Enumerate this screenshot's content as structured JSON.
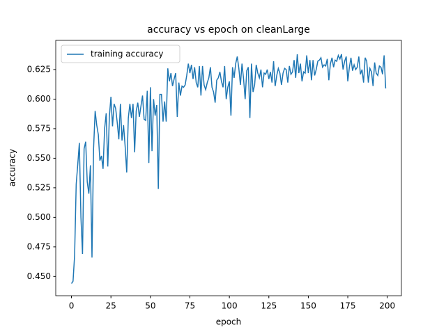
{
  "chart_data": {
    "type": "line",
    "title": "accuracy vs epoch on cleanLarge",
    "x_label": "epoch",
    "y_label": "accuracy",
    "x": [
      0,
      1,
      2,
      3,
      4,
      5,
      6,
      7,
      8,
      9,
      10,
      11,
      12,
      13,
      14,
      15,
      16,
      17,
      18,
      19,
      20,
      21,
      22,
      23,
      24,
      25,
      26,
      27,
      28,
      29,
      30,
      31,
      32,
      33,
      34,
      35,
      36,
      37,
      38,
      39,
      40,
      41,
      42,
      43,
      44,
      45,
      46,
      47,
      48,
      49,
      50,
      51,
      52,
      53,
      54,
      55,
      56,
      57,
      58,
      59,
      60,
      61,
      62,
      63,
      64,
      65,
      66,
      67,
      68,
      69,
      70,
      71,
      72,
      73,
      74,
      75,
      76,
      77,
      78,
      79,
      80,
      81,
      82,
      83,
      84,
      85,
      86,
      87,
      88,
      89,
      90,
      91,
      92,
      93,
      94,
      95,
      96,
      97,
      98,
      99,
      100,
      101,
      102,
      103,
      104,
      105,
      106,
      107,
      108,
      109,
      110,
      111,
      112,
      113,
      114,
      115,
      116,
      117,
      118,
      119,
      120,
      121,
      122,
      123,
      124,
      125,
      126,
      127,
      128,
      129,
      130,
      131,
      132,
      133,
      134,
      135,
      136,
      137,
      138,
      139,
      140,
      141,
      142,
      143,
      144,
      145,
      146,
      147,
      148,
      149,
      150,
      151,
      152,
      153,
      154,
      155,
      156,
      157,
      158,
      159,
      160,
      161,
      162,
      163,
      164,
      165,
      166,
      167,
      168,
      169,
      170,
      171,
      172,
      173,
      174,
      175,
      176,
      177,
      178,
      179,
      180,
      181,
      182,
      183,
      184,
      185,
      186,
      187,
      188,
      189,
      190,
      191,
      192,
      193,
      194,
      195,
      196,
      197,
      198,
      199
    ],
    "series": [
      {
        "name": "training accuracy",
        "color": "#1f77b4",
        "values": [
          0.444,
          0.446,
          0.468,
          0.528,
          0.545,
          0.563,
          0.5,
          0.469,
          0.558,
          0.564,
          0.53,
          0.52,
          0.544,
          0.466,
          0.558,
          0.59,
          0.578,
          0.57,
          0.548,
          0.552,
          0.541,
          0.575,
          0.588,
          0.543,
          0.585,
          0.602,
          0.577,
          0.596,
          0.592,
          0.58,
          0.566,
          0.596,
          0.565,
          0.578,
          0.56,
          0.538,
          0.584,
          0.596,
          0.584,
          0.596,
          0.555,
          0.59,
          0.597,
          0.585,
          0.594,
          0.603,
          0.583,
          0.582,
          0.607,
          0.546,
          0.61,
          0.556,
          0.6,
          0.586,
          0.595,
          0.524,
          0.604,
          0.604,
          0.581,
          0.598,
          0.581,
          0.626,
          0.615,
          0.622,
          0.611,
          0.617,
          0.622,
          0.585,
          0.614,
          0.603,
          0.611,
          0.61,
          0.612,
          0.62,
          0.63,
          0.622,
          0.629,
          0.617,
          0.627,
          0.614,
          0.61,
          0.628,
          0.603,
          0.628,
          0.612,
          0.608,
          0.614,
          0.618,
          0.627,
          0.61,
          0.606,
          0.597,
          0.616,
          0.618,
          0.623,
          0.615,
          0.61,
          0.628,
          0.6,
          0.61,
          0.615,
          0.586,
          0.627,
          0.618,
          0.63,
          0.636,
          0.626,
          0.612,
          0.63,
          0.617,
          0.6,
          0.624,
          0.627,
          0.584,
          0.63,
          0.606,
          0.612,
          0.629,
          0.622,
          0.618,
          0.625,
          0.61,
          0.622,
          0.621,
          0.625,
          0.617,
          0.623,
          0.614,
          0.632,
          0.611,
          0.62,
          0.626,
          0.622,
          0.612,
          0.622,
          0.626,
          0.625,
          0.614,
          0.628,
          0.621,
          0.623,
          0.633,
          0.618,
          0.638,
          0.622,
          0.63,
          0.615,
          0.623,
          0.622,
          0.637,
          0.622,
          0.633,
          0.616,
          0.633,
          0.62,
          0.625,
          0.632,
          0.633,
          0.635,
          0.627,
          0.629,
          0.628,
          0.634,
          0.616,
          0.63,
          0.635,
          0.627,
          0.633,
          0.632,
          0.637,
          0.634,
          0.638,
          0.625,
          0.632,
          0.636,
          0.615,
          0.627,
          0.635,
          0.624,
          0.629,
          0.625,
          0.627,
          0.636,
          0.621,
          0.625,
          0.614,
          0.635,
          0.632,
          0.614,
          0.626,
          0.623,
          0.611,
          0.631,
          0.622,
          0.62,
          0.628,
          0.627,
          0.621,
          0.637,
          0.609
        ]
      }
    ],
    "xlim": [
      -9.95,
      208.95
    ],
    "xticks": [
      0,
      25,
      50,
      75,
      100,
      125,
      150,
      175,
      200
    ],
    "ylim": [
      0.4337,
      0.6497
    ],
    "yticks": [
      {
        "value": 0.45,
        "label": "0.450"
      },
      {
        "value": 0.475,
        "label": "0.475"
      },
      {
        "value": 0.5,
        "label": "0.500"
      },
      {
        "value": 0.525,
        "label": "0.525"
      },
      {
        "value": 0.55,
        "label": "0.550"
      },
      {
        "value": 0.575,
        "label": "0.575"
      },
      {
        "value": 0.6,
        "label": "0.600"
      },
      {
        "value": 0.625,
        "label": "0.625"
      }
    ],
    "legend": "upper left",
    "grid": false
  }
}
